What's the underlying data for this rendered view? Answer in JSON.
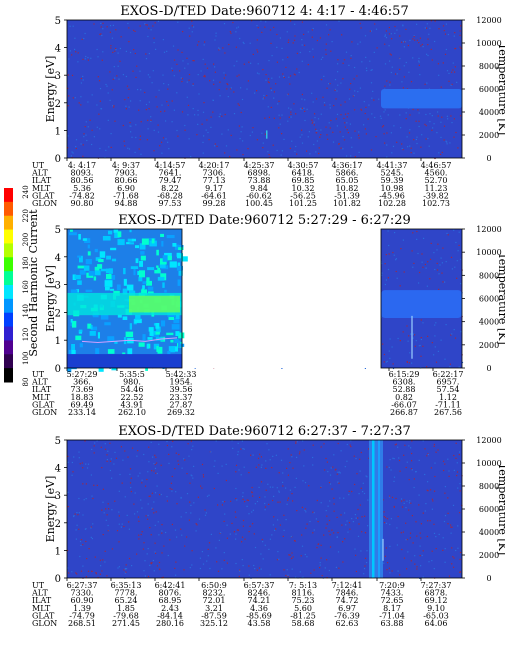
{
  "colors": {
    "background": "#2f45c8",
    "dots": "#9a2a4a",
    "marker": "#9ad0ff"
  },
  "colorbar": {
    "label": "Second Harmonic Current",
    "ticks": [
      "240",
      "220",
      "200",
      "180",
      "160",
      "140",
      "120",
      "100",
      "80"
    ],
    "colors": [
      "#ff0000",
      "#ff5a00",
      "#ffb000",
      "#ffff00",
      "#b4ff00",
      "#3cff00",
      "#00ff96",
      "#00e6ff",
      "#0096ff",
      "#0040ff",
      "#3020d0",
      "#500090",
      "#300050",
      "#000000"
    ]
  },
  "panels": [
    {
      "title": "EXOS-D/TED   Date:960712  4: 4:17 - 4:46:57",
      "y_left_label": "Energy [eV]",
      "y_right_label": "Temperature [K]",
      "y_left_ticks": [
        "0",
        "1",
        "2",
        "3",
        "4",
        "5"
      ],
      "y_right_ticks": [
        "0",
        "2000",
        "4000",
        "6000",
        "8000",
        "10000",
        "12000"
      ],
      "row_labels": [
        "UT",
        "ALT",
        "ILAT",
        "MLT",
        "GLAT",
        "GLON"
      ],
      "columns": [
        [
          "4: 4:17",
          "8093.",
          "80.56",
          "5.36",
          "-74.82",
          "90.80"
        ],
        [
          "4: 9:37",
          "7903.",
          "80.66",
          "6.90",
          "-71.68",
          "94.88"
        ],
        [
          "4:14:57",
          "7641.",
          "79.47",
          "8.22",
          "-68.28",
          "97.53"
        ],
        [
          "4:20:17",
          "7306.",
          "77.13",
          "9.17",
          "-64.61",
          "99.28"
        ],
        [
          "4:25:37",
          "6898.",
          "73.88",
          "9.84",
          "-60.62",
          "100.45"
        ],
        [
          "4:30:57",
          "6418.",
          "69.85",
          "10.32",
          "-56.25",
          "101.25"
        ],
        [
          "4:36:17",
          "5866.",
          "65.05",
          "10.82",
          "-51.39",
          "101.82"
        ],
        [
          "4:41:37",
          "5245.",
          "59.39",
          "10.98",
          "-45.96",
          "102.28"
        ],
        [
          "4:46:57",
          "4560.",
          "52.70",
          "11.23",
          "-39.82",
          "102.73"
        ]
      ]
    },
    {
      "title": "EXOS-D/TED   Date:960712  5:27:29 - 6:27:29",
      "y_left_label": "Energy [eV]",
      "y_right_label": "Temperature [K]",
      "y_left_ticks": [
        "0",
        "1",
        "2",
        "3",
        "4",
        "5"
      ],
      "y_right_ticks": [
        "0",
        "2000",
        "4000",
        "6000",
        "8000",
        "10000",
        "12000"
      ],
      "row_labels": [
        "UT",
        "ALT",
        "ILAT",
        "MLT",
        "GLAT",
        "GLON"
      ],
      "columns": [
        [
          "5:27:29",
          "366.",
          "73.69",
          "18.83",
          "69.49",
          "233.14"
        ],
        [
          "5:35:5",
          "980.",
          "54.46",
          "22.52",
          "43.91",
          "262.10"
        ],
        [
          "5:42:33",
          "1954.",
          "39.56",
          "23.37",
          "27.87",
          "269.32"
        ],
        [
          "6:15:29",
          "6308.",
          "52.88",
          "0.82",
          "-66.07",
          "266.87"
        ],
        [
          "6:22:17",
          "6957.",
          "57.54",
          "1.12",
          "-71.11",
          "267.56"
        ]
      ]
    },
    {
      "title": "EXOS-D/TED   Date:960712  6:27:37 - 7:27:37",
      "y_left_label": "Energy [eV]",
      "y_right_label": "Temperature [K]",
      "y_left_ticks": [
        "0",
        "1",
        "2",
        "3",
        "4",
        "5"
      ],
      "y_right_ticks": [
        "0",
        "2000",
        "4000",
        "6000",
        "8000",
        "10000",
        "12000"
      ],
      "row_labels": [
        "UT",
        "ALT",
        "ILAT",
        "MLT",
        "GLAT",
        "GLON"
      ],
      "columns": [
        [
          "6:27:37",
          "7330.",
          "60.90",
          "1.39",
          "-74.79",
          "268.51"
        ],
        [
          "6:35:13",
          "7778.",
          "65.24",
          "1.85",
          "-79.68",
          "271.45"
        ],
        [
          "6:42:41",
          "8076.",
          "68.95",
          "2.43",
          "-84.14",
          "280.16"
        ],
        [
          "6:50:9",
          "8232.",
          "72.01",
          "3.21",
          "-87.59",
          "325.12"
        ],
        [
          "6:57:37",
          "8246.",
          "74.21",
          "4.36",
          "-85.69",
          "43.58"
        ],
        [
          "7: 5:13",
          "8116.",
          "75.23",
          "5.60",
          "-81.25",
          "58.68"
        ],
        [
          "7:12:41",
          "7846.",
          "74.72",
          "6.97",
          "-76.39",
          "62.63"
        ],
        [
          "7:20:9",
          "7433.",
          "72.65",
          "8.17",
          "-71.04",
          "63.88"
        ],
        [
          "7:27:37",
          "6878.",
          "69.12",
          "9.10",
          "-65.03",
          "64.06"
        ]
      ]
    }
  ],
  "chart_data": [
    {
      "type": "heatmap",
      "title": "EXOS-D/TED   Date:960712  4: 4:17 - 4:46:57",
      "xlabel": "UT",
      "ylabel": "Energy [eV]",
      "y2label": "Temperature [K]",
      "ylim": [
        0,
        5
      ],
      "y2lim": [
        0,
        12000
      ],
      "colorbar_label": "Second Harmonic Current",
      "colorbar_range": [
        80,
        240
      ],
      "x": [
        "4: 4:17",
        "4: 9:37",
        "4:14:57",
        "4:20:17",
        "4:25:37",
        "4:30:57",
        "4:36:17",
        "4:41:37",
        "4:46:57"
      ],
      "features": [
        {
          "x_range": [
            "4:41:37",
            "4:46:57"
          ],
          "energy_range": [
            1.8,
            2.5
          ],
          "level": 110
        },
        {
          "x": "4:25:37",
          "energy_range": [
            0.7,
            1.0
          ],
          "level": 150
        }
      ],
      "background_level": 120
    },
    {
      "type": "heatmap",
      "title": "EXOS-D/TED   Date:960712  5:27:29 - 6:27:29",
      "xlabel": "UT",
      "ylabel": "Energy [eV]",
      "y2label": "Temperature [K]",
      "ylim": [
        0,
        5
      ],
      "y2lim": [
        0,
        12000
      ],
      "colorbar_label": "Second Harmonic Current",
      "colorbar_range": [
        80,
        240
      ],
      "x": [
        "5:27:29",
        "5:35:5",
        "5:42:33",
        "6:15:29",
        "6:22:17"
      ],
      "data_gap": [
        "5:42:33",
        "6:15:29"
      ],
      "features": [
        {
          "x_range": [
            "5:27:29",
            "5:42:33"
          ],
          "energy_range": [
            0,
            5
          ],
          "level": 165
        },
        {
          "x_range": [
            "5:35:5",
            "5:42:33"
          ],
          "energy_range": [
            1.8,
            3.0
          ],
          "level": 190
        },
        {
          "x_range": [
            "6:15:29",
            "6:22:17"
          ],
          "energy_range": [
            1.8,
            2.8
          ],
          "level": 115
        }
      ],
      "temperature_trace_K": [
        2300,
        2200,
        2300,
        2400,
        2300,
        2500,
        2600
      ]
    },
    {
      "type": "heatmap",
      "title": "EXOS-D/TED   Date:960712  6:27:37 - 7:27:37",
      "xlabel": "UT",
      "ylabel": "Energy [eV]",
      "y2label": "Temperature [K]",
      "ylim": [
        0,
        5
      ],
      "y2lim": [
        0,
        12000
      ],
      "colorbar_label": "Second Harmonic Current",
      "colorbar_range": [
        80,
        240
      ],
      "x": [
        "6:27:37",
        "6:35:13",
        "6:42:41",
        "6:50:9",
        "6:57:37",
        "7: 5:13",
        "7:12:41",
        "7:20:9",
        "7:27:37"
      ],
      "features": [
        {
          "x_range": [
            "7:20:9",
            "7:22:0"
          ],
          "energy_range": [
            0,
            5
          ],
          "level": 135
        }
      ],
      "temperature_trace_K": [
        1500,
        3400
      ],
      "background_level": 120
    }
  ]
}
